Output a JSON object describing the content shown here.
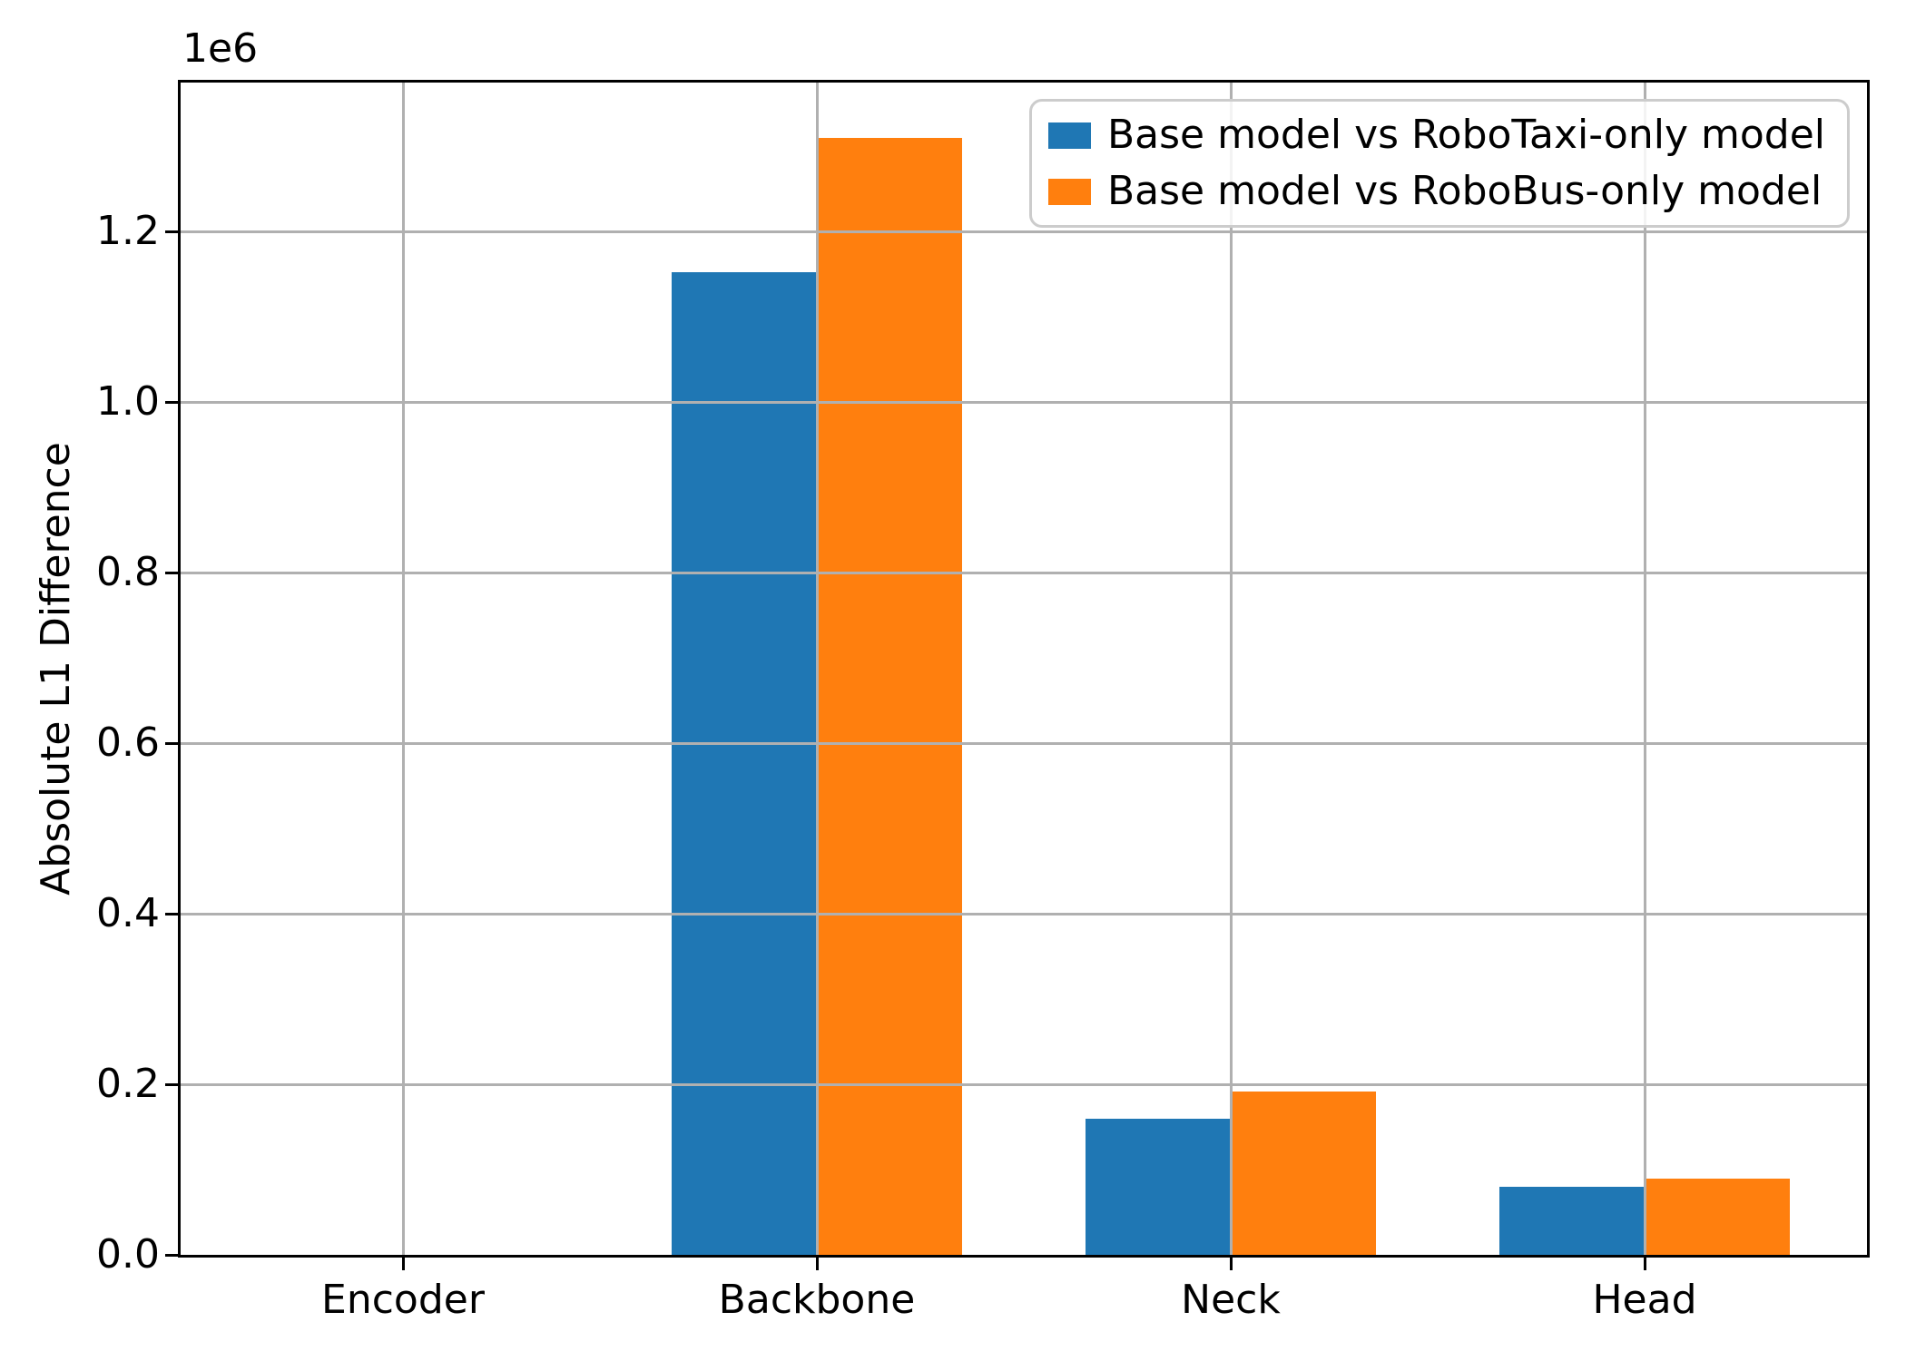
{
  "chart_data": {
    "type": "bar",
    "title": "",
    "xlabel": "",
    "ylabel": "Absolute L1 Difference",
    "offset_text": "1e6",
    "categories": [
      "Encoder",
      "Backbone",
      "Neck",
      "Head"
    ],
    "series": [
      {
        "name": "Base model vs RoboTaxi-only model",
        "color": "#1f77b4",
        "values": [
          0,
          1152000,
          160000,
          80000
        ]
      },
      {
        "name": "Base model vs RoboBus-only model",
        "color": "#ff7f0e",
        "values": [
          0,
          1310000,
          192000,
          89000
        ]
      }
    ],
    "ylim": [
      0,
      1374500
    ],
    "yticks": {
      "values": [
        0,
        200000,
        400000,
        600000,
        800000,
        1000000,
        1200000
      ],
      "labels": [
        "0.0",
        "0.2",
        "0.4",
        "0.6",
        "0.8",
        "1.0",
        "1.2"
      ]
    },
    "grid": true,
    "grid_color": "#b0b0b0",
    "axis_color": "#000000",
    "legend_position": "upper right",
    "bar_width_fraction": 0.35
  }
}
